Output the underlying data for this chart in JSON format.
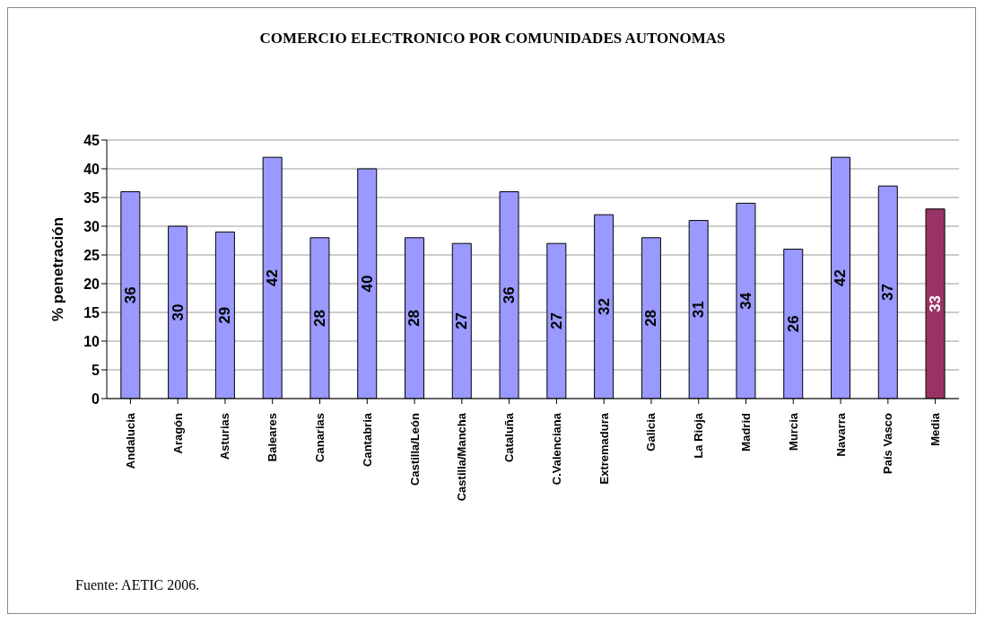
{
  "chart_data": {
    "type": "bar",
    "title": "COMERCIO ELECTRONICO POR COMUNIDADES AUTONOMAS",
    "ylabel": "% penetración",
    "categories": [
      "Andalucia",
      "Aragón",
      "Asturias",
      "Baleares",
      "Canarias",
      "Cantabria",
      "Castilla/León",
      "Castilla/Mancha",
      "Cataluña",
      "C.Valenciana",
      "Extremadura",
      "Galicia",
      "La Rioja",
      "Madrid",
      "Murcia",
      "Navarra",
      "País Vasco",
      "Media"
    ],
    "values": [
      36,
      30,
      29,
      42,
      28,
      40,
      28,
      27,
      36,
      27,
      32,
      28,
      31,
      34,
      26,
      42,
      37,
      33
    ],
    "colors": [
      "#9999ff",
      "#9999ff",
      "#9999ff",
      "#9999ff",
      "#9999ff",
      "#9999ff",
      "#9999ff",
      "#9999ff",
      "#9999ff",
      "#9999ff",
      "#9999ff",
      "#9999ff",
      "#9999ff",
      "#9999ff",
      "#9999ff",
      "#9999ff",
      "#9999ff",
      "#993366"
    ],
    "ylim": [
      0,
      45
    ],
    "yticks": [
      0,
      5,
      10,
      15,
      20,
      25,
      30,
      35,
      40,
      45
    ],
    "grid": "y",
    "legend": false,
    "data_labels": true,
    "annotations": [
      "Fuente: AETIC 2006."
    ]
  }
}
